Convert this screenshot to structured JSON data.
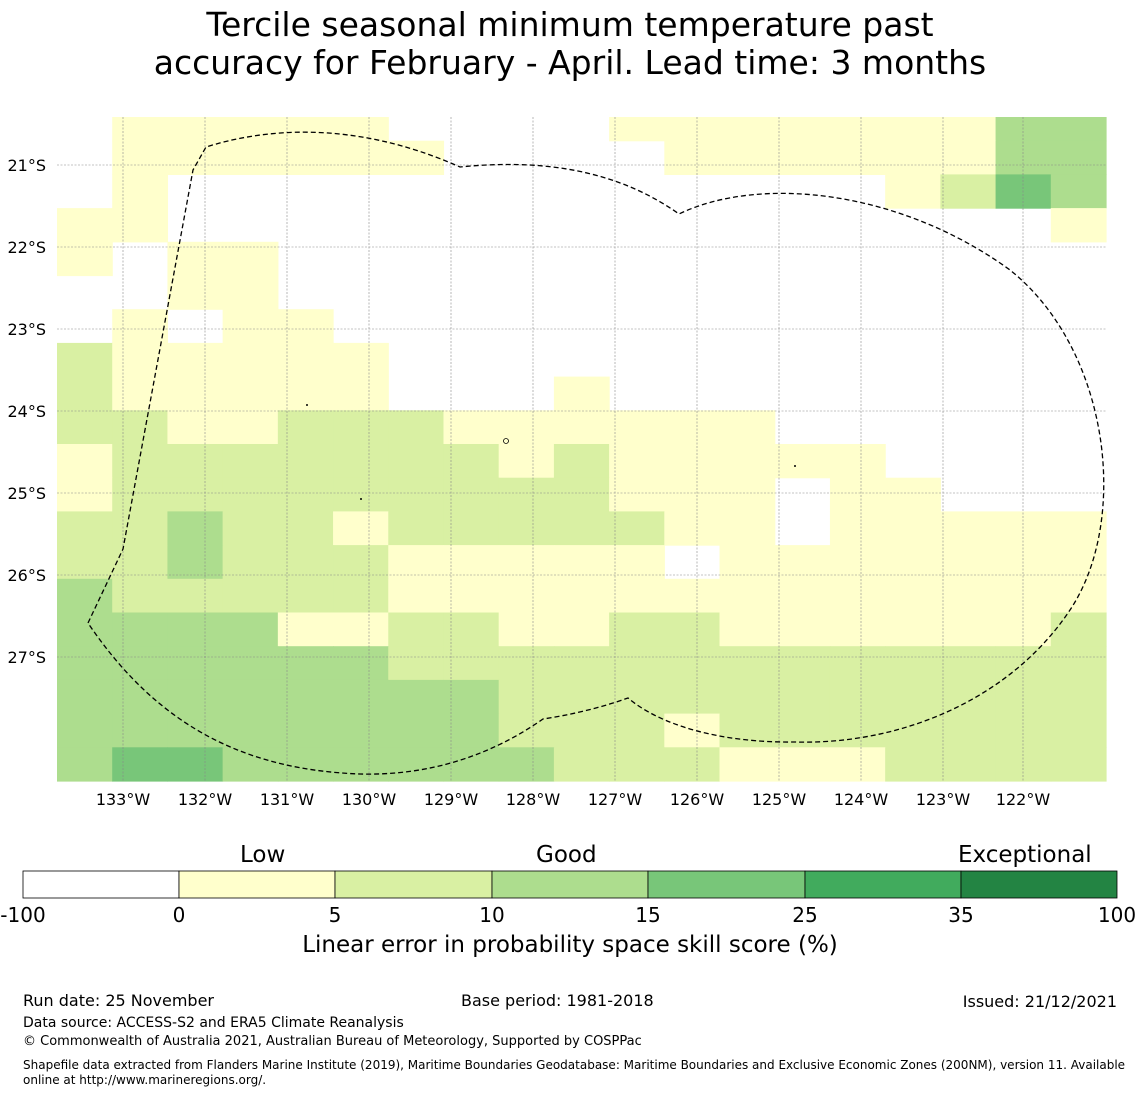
{
  "title": {
    "line1": "Tercile seasonal minimum temperature past",
    "line2": "accuracy for February - April. Lead time: 3 months"
  },
  "map": {
    "lat_labels": [
      "21°S",
      "22°S",
      "23°S",
      "24°S",
      "25°S",
      "26°S",
      "27°S"
    ],
    "lon_labels": [
      "133°W",
      "132°W",
      "131°W",
      "130°W",
      "129°W",
      "128°W",
      "127°W",
      "126°W",
      "125°W",
      "124°W",
      "123°W",
      "122°W"
    ],
    "grid": [
      "0111110000111111133",
      "0111111000011111133",
      "0100000000000001243",
      "1100000000000000001",
      "1011000000000000000",
      "0011000000000000000",
      "0101100000000000000",
      "2111110000000000000",
      "2111110001000000000",
      "2211222111111000000",
      "1222222212111110000",
      "1222222222111011000",
      "2232212222211011111",
      "2232221111101111111",
      "3222221111111111111",
      "3333112211221111112",
      "3333332222222222222",
      "3333333322222222222",
      "3333333322212222222",
      "3443333332221112222"
    ]
  },
  "colorbar": {
    "categories": [
      "Low",
      "Good",
      "Exceptional"
    ],
    "bounds": [
      "-100",
      "0",
      "5",
      "10",
      "15",
      "25",
      "35",
      "100"
    ],
    "colors": [
      "#ffffff",
      "#ffffcc",
      "#d9f0a3",
      "#addd8e",
      "#78c679",
      "#41ab5d",
      "#238443"
    ],
    "title": "Linear error in probability space skill score (%)"
  },
  "footer": {
    "run_date": "Run date: 25 November",
    "base_period": "Base period: 1981-2018",
    "issued": "Issued: 21/12/2021",
    "data_source": "Data source: ACCESS-S2 and ERA5 Climate Reanalysis",
    "copyright": "© Commonwealth of Australia 2021, Australian Bureau of Meteorology, Supported by COSPPac",
    "shapefile": "Shapefile data extracted from Flanders Marine Institute (2019), Maritime Boundaries Geodatabase: Maritime Boundaries and Exclusive Economic Zones (200NM), version 11. Available online at http://www.marineregions.org/."
  }
}
